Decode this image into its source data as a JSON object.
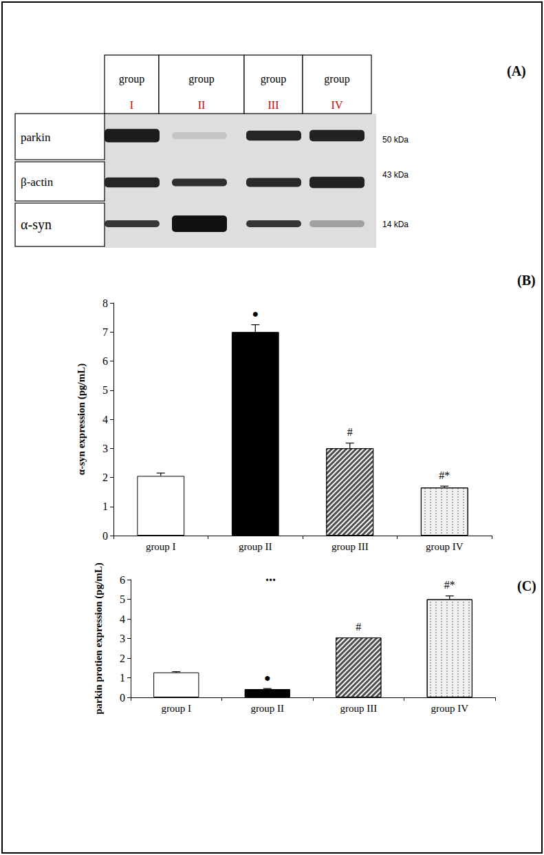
{
  "blot": {
    "panel": "(A)",
    "header": "group",
    "groups": [
      "I",
      "II",
      "III",
      "IV"
    ],
    "rows": [
      {
        "label": "parkin",
        "size": "50 kDa",
        "bands": [
          0.95,
          0.12,
          0.9,
          0.92
        ]
      },
      {
        "label": "β-actin",
        "size": "43 kDa",
        "bands": [
          0.9,
          0.86,
          0.88,
          0.92
        ]
      },
      {
        "label": "α-syn",
        "size": "14 kDa",
        "bands": [
          0.82,
          1.0,
          0.82,
          0.3
        ]
      }
    ]
  },
  "chart_data": [
    {
      "type": "bar",
      "panel": "(B)",
      "y_label": "α-syn expression (pg/mL)",
      "categories": [
        "group I",
        "group II",
        "group III",
        "group IV"
      ],
      "values": [
        2.05,
        7.0,
        3.0,
        1.65
      ],
      "error": [
        0.1,
        0.25,
        0.18,
        0.05
      ],
      "significance": [
        null,
        "●",
        "#",
        "#*"
      ],
      "colors": [
        "#ffffff",
        "#000000",
        "#4d4d4d",
        "#f2f2f2"
      ],
      "ylim": [
        0,
        8
      ],
      "yticks": [
        0,
        1,
        2,
        3,
        4,
        5,
        6,
        7,
        8
      ],
      "grid": false
    },
    {
      "type": "bar",
      "panel": "(C)",
      "annotation": "...",
      "y_label": "parkin protien expression (pg/mL)",
      "categories": [
        "group I",
        "group II",
        "group III",
        "group IV"
      ],
      "values": [
        1.27,
        0.42,
        3.05,
        5.0
      ],
      "error": [
        0.04,
        0.03,
        0,
        0.17
      ],
      "significance": [
        null,
        "●",
        "#",
        "#*"
      ],
      "colors": [
        "#ffffff",
        "#000000",
        "#4d4d4d",
        "#f2f2f2"
      ],
      "ylim": [
        0,
        6
      ],
      "yticks": [
        0,
        1,
        2,
        3,
        4,
        5,
        6
      ],
      "grid": false
    }
  ]
}
